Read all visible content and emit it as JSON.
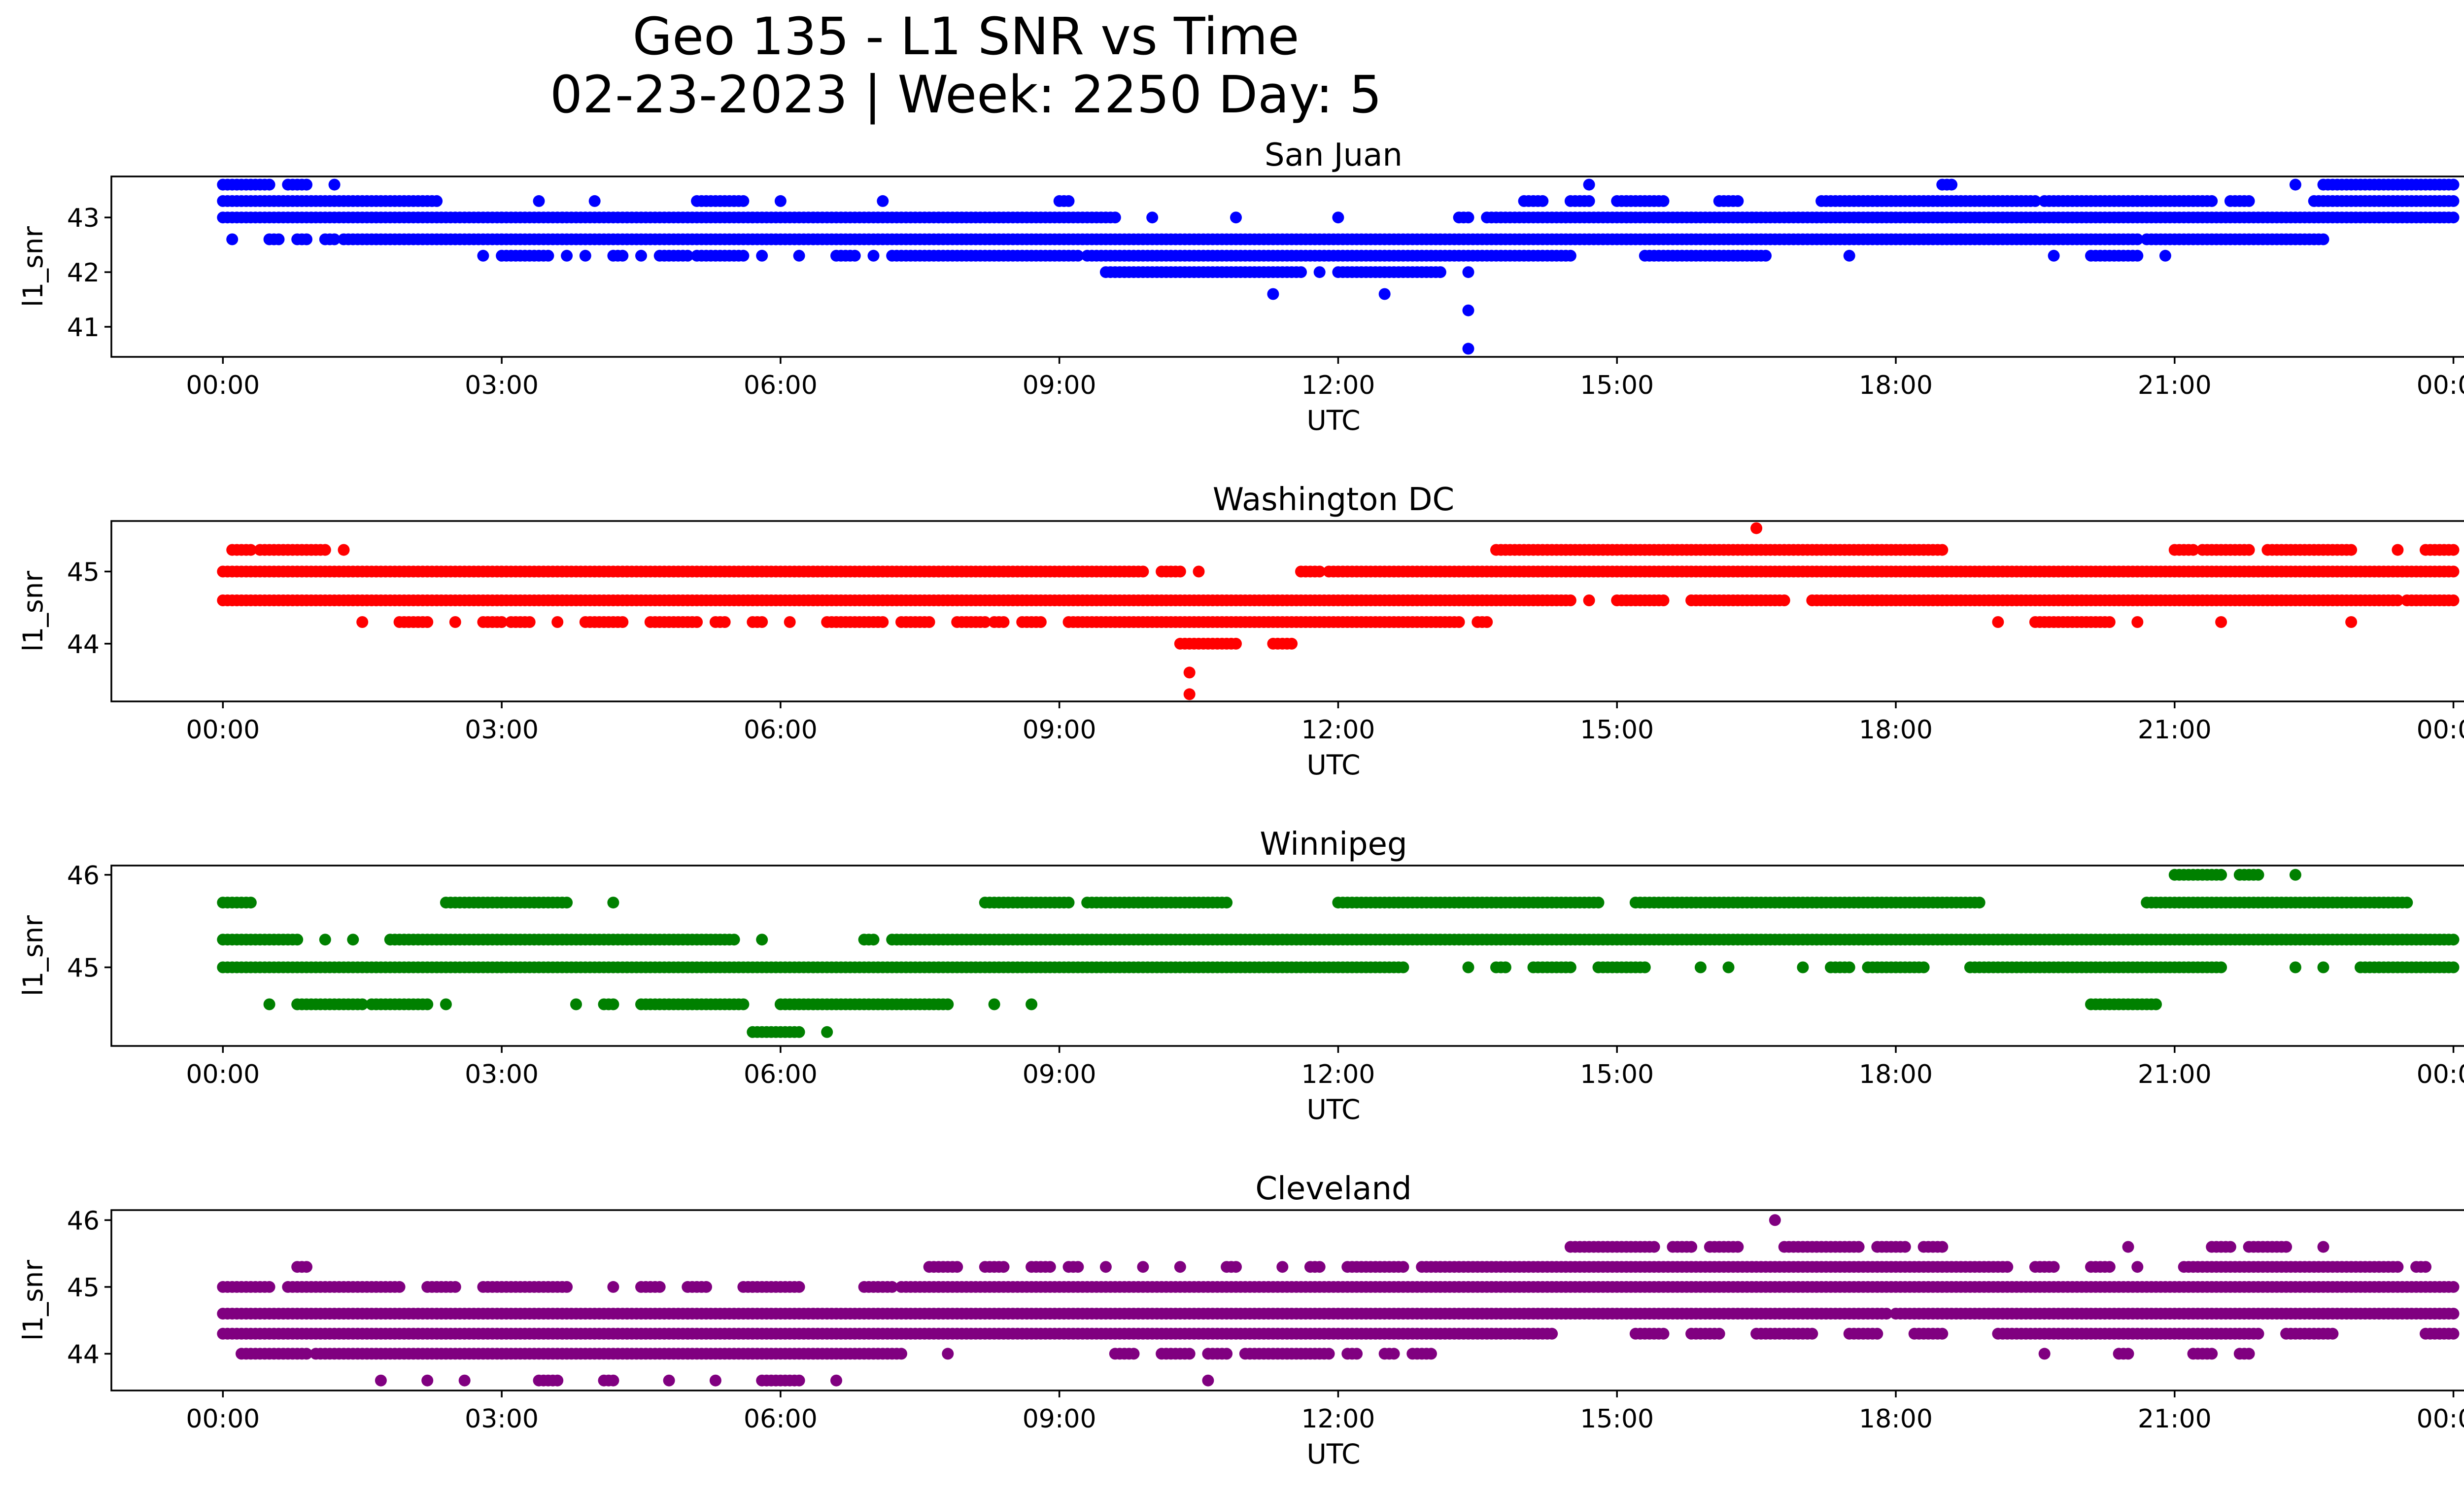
{
  "figure": {
    "title_line1": "Geo 135 - L1 SNR vs Time",
    "title_line2": "02-23-2023 | Week: 2250 Day: 5"
  },
  "chart_data": [
    {
      "type": "scatter",
      "title": "San Juan",
      "xlabel": "UTC",
      "ylabel": "l1_snr",
      "color": "#0000ff",
      "xlim": [
        -1.2,
        25.1
      ],
      "ylim": [
        40.45,
        43.75
      ],
      "x_ticks": [
        "00:00",
        "03:00",
        "06:00",
        "09:00",
        "12:00",
        "15:00",
        "18:00",
        "21:00",
        "00:00"
      ],
      "y_ticks": [
        41,
        42,
        43
      ],
      "bands": [
        {
          "y": 43.6,
          "segments": [
            [
              0.0,
              0.5
            ],
            [
              0.7,
              0.9
            ],
            [
              1.2,
              1.2
            ],
            [
              22.3,
              22.3
            ],
            [
              22.6,
              24.0
            ],
            [
              14.7,
              14.7
            ],
            [
              18.5,
              18.6
            ]
          ]
        },
        {
          "y": 43.3,
          "segments": [
            [
              0.0,
              2.3
            ],
            [
              3.4,
              3.4
            ],
            [
              4.0,
              4.0
            ],
            [
              5.1,
              5.6
            ],
            [
              6.0,
              6.0
            ],
            [
              7.1,
              7.1
            ],
            [
              9.0,
              9.1
            ],
            [
              14.0,
              14.2
            ],
            [
              14.5,
              14.7
            ],
            [
              15.0,
              15.5
            ],
            [
              16.1,
              16.3
            ],
            [
              17.2,
              19.5
            ],
            [
              19.6,
              21.4
            ],
            [
              21.6,
              21.8
            ],
            [
              22.5,
              24.0
            ]
          ]
        },
        {
          "y": 43.0,
          "segments": [
            [
              0.0,
              9.6
            ],
            [
              10.0,
              10.0
            ],
            [
              10.9,
              10.9
            ],
            [
              12.0,
              12.0
            ],
            [
              13.3,
              13.4
            ],
            [
              13.6,
              24.0
            ]
          ]
        },
        {
          "y": 42.6,
          "segments": [
            [
              0.1,
              0.1
            ],
            [
              0.5,
              0.6
            ],
            [
              0.8,
              0.9
            ],
            [
              1.1,
              1.2
            ],
            [
              1.3,
              20.6
            ],
            [
              20.7,
              22.6
            ]
          ]
        },
        {
          "y": 42.3,
          "segments": [
            [
              2.8,
              2.8
            ],
            [
              3.0,
              3.5
            ],
            [
              3.7,
              3.7
            ],
            [
              3.9,
              3.9
            ],
            [
              4.2,
              4.3
            ],
            [
              4.5,
              4.5
            ],
            [
              4.7,
              5.0
            ],
            [
              5.1,
              5.6
            ],
            [
              6.2,
              6.2
            ],
            [
              5.8,
              5.8
            ],
            [
              6.6,
              6.8
            ],
            [
              7.0,
              7.0
            ],
            [
              7.2,
              9.2
            ],
            [
              9.3,
              14.5
            ],
            [
              15.3,
              16.6
            ],
            [
              17.5,
              17.5
            ],
            [
              19.7,
              19.7
            ],
            [
              20.1,
              20.6
            ],
            [
              20.9,
              20.9
            ]
          ]
        },
        {
          "y": 42.0,
          "segments": [
            [
              9.5,
              11.6
            ],
            [
              11.8,
              11.8
            ],
            [
              12.0,
              13.1
            ],
            [
              13.4,
              13.4
            ]
          ]
        },
        {
          "y": 41.6,
          "segments": [
            [
              11.3,
              11.3
            ],
            [
              12.5,
              12.5
            ]
          ]
        },
        {
          "y": 41.3,
          "segments": [
            [
              13.4,
              13.4
            ]
          ]
        },
        {
          "y": 40.6,
          "segments": [
            [
              13.4,
              13.4
            ]
          ]
        }
      ]
    },
    {
      "type": "scatter",
      "title": "Washington DC",
      "xlabel": "UTC",
      "ylabel": "l1_snr",
      "color": "#ff0000",
      "xlim": [
        -1.2,
        25.1
      ],
      "ylim": [
        43.2,
        45.7
      ],
      "x_ticks": [
        "00:00",
        "03:00",
        "06:00",
        "09:00",
        "12:00",
        "15:00",
        "18:00",
        "21:00",
        "00:00"
      ],
      "y_ticks": [
        44,
        45
      ],
      "bands": [
        {
          "y": 45.6,
          "segments": [
            [
              16.5,
              16.5
            ]
          ]
        },
        {
          "y": 45.3,
          "segments": [
            [
              0.1,
              0.3
            ],
            [
              0.4,
              1.1
            ],
            [
              1.3,
              1.3
            ],
            [
              13.7,
              18.5
            ],
            [
              21.0,
              21.2
            ],
            [
              21.3,
              21.8
            ],
            [
              22.0,
              22.9
            ],
            [
              23.4,
              23.4
            ],
            [
              23.7,
              24.0
            ]
          ]
        },
        {
          "y": 45.0,
          "segments": [
            [
              0.0,
              9.9
            ],
            [
              10.1,
              10.3
            ],
            [
              10.5,
              10.5
            ],
            [
              11.6,
              11.8
            ],
            [
              11.9,
              24.0
            ]
          ]
        },
        {
          "y": 44.6,
          "segments": [
            [
              0.0,
              14.5
            ],
            [
              14.7,
              14.7
            ],
            [
              15.0,
              15.5
            ],
            [
              15.8,
              16.8
            ],
            [
              17.1,
              23.4
            ],
            [
              23.5,
              24.0
            ]
          ]
        },
        {
          "y": 44.3,
          "segments": [
            [
              1.5,
              1.5
            ],
            [
              1.9,
              2.2
            ],
            [
              2.5,
              2.5
            ],
            [
              2.8,
              3.0
            ],
            [
              3.1,
              3.3
            ],
            [
              3.6,
              3.6
            ],
            [
              3.9,
              4.3
            ],
            [
              4.6,
              5.1
            ],
            [
              5.3,
              5.4
            ],
            [
              5.7,
              5.8
            ],
            [
              6.1,
              6.1
            ],
            [
              6.5,
              7.1
            ],
            [
              7.3,
              7.6
            ],
            [
              7.9,
              8.2
            ],
            [
              8.3,
              8.4
            ],
            [
              8.6,
              8.8
            ],
            [
              9.1,
              13.3
            ],
            [
              13.5,
              13.6
            ],
            [
              19.1,
              19.1
            ],
            [
              19.5,
              20.3
            ],
            [
              20.6,
              20.6
            ],
            [
              21.5,
              21.5
            ],
            [
              22.9,
              22.9
            ]
          ]
        },
        {
          "y": 44.0,
          "segments": [
            [
              10.3,
              10.9
            ],
            [
              11.3,
              11.5
            ]
          ]
        },
        {
          "y": 43.6,
          "segments": [
            [
              10.4,
              10.4
            ]
          ]
        },
        {
          "y": 43.3,
          "segments": [
            [
              10.4,
              10.4
            ]
          ]
        }
      ]
    },
    {
      "type": "scatter",
      "title": "Winnipeg",
      "xlabel": "UTC",
      "ylabel": "l1_snr",
      "color": "#008000",
      "xlim": [
        -1.2,
        25.1
      ],
      "ylim": [
        44.15,
        46.1
      ],
      "x_ticks": [
        "00:00",
        "03:00",
        "06:00",
        "09:00",
        "12:00",
        "15:00",
        "18:00",
        "21:00",
        "00:00"
      ],
      "y_ticks": [
        45,
        46
      ],
      "bands": [
        {
          "y": 46.0,
          "segments": [
            [
              21.0,
              21.5
            ],
            [
              21.7,
              21.9
            ],
            [
              22.3,
              22.3
            ]
          ]
        },
        {
          "y": 45.7,
          "segments": [
            [
              0.0,
              0.3
            ],
            [
              2.4,
              3.7
            ],
            [
              4.2,
              4.2
            ],
            [
              8.2,
              9.1
            ],
            [
              9.3,
              10.8
            ],
            [
              12.0,
              14.8
            ],
            [
              15.2,
              18.9
            ],
            [
              20.7,
              23.5
            ]
          ]
        },
        {
          "y": 45.3,
          "segments": [
            [
              0.0,
              0.8
            ],
            [
              1.1,
              1.1
            ],
            [
              1.4,
              1.4
            ],
            [
              1.8,
              5.5
            ],
            [
              5.8,
              5.8
            ],
            [
              6.9,
              7.0
            ],
            [
              7.2,
              24.0
            ]
          ]
        },
        {
          "y": 45.0,
          "segments": [
            [
              0.0,
              12.7
            ],
            [
              13.4,
              13.4
            ],
            [
              13.7,
              13.8
            ],
            [
              14.1,
              14.5
            ],
            [
              14.8,
              15.3
            ],
            [
              15.9,
              15.9
            ],
            [
              16.2,
              16.2
            ],
            [
              17.0,
              17.0
            ],
            [
              17.3,
              17.5
            ],
            [
              17.7,
              18.3
            ],
            [
              18.8,
              21.5
            ],
            [
              22.3,
              22.3
            ],
            [
              22.6,
              22.6
            ],
            [
              23.0,
              24.0
            ]
          ]
        },
        {
          "y": 44.6,
          "segments": [
            [
              0.5,
              0.5
            ],
            [
              0.8,
              1.5
            ],
            [
              1.6,
              2.2
            ],
            [
              2.4,
              2.4
            ],
            [
              3.8,
              3.8
            ],
            [
              4.1,
              4.2
            ],
            [
              4.5,
              5.6
            ],
            [
              6.0,
              7.8
            ],
            [
              8.3,
              8.3
            ],
            [
              8.7,
              8.7
            ],
            [
              20.1,
              20.8
            ]
          ]
        },
        {
          "y": 44.3,
          "segments": [
            [
              5.7,
              6.2
            ],
            [
              6.5,
              6.5
            ]
          ]
        }
      ]
    },
    {
      "type": "scatter",
      "title": "Cleveland",
      "xlabel": "UTC",
      "ylabel": "l1_snr",
      "color": "#800080",
      "xlim": [
        -1.2,
        25.1
      ],
      "ylim": [
        43.45,
        46.15
      ],
      "x_ticks": [
        "00:00",
        "03:00",
        "06:00",
        "09:00",
        "12:00",
        "15:00",
        "18:00",
        "21:00",
        "00:00"
      ],
      "y_ticks": [
        44,
        45,
        46
      ],
      "bands": [
        {
          "y": 46.0,
          "segments": [
            [
              16.7,
              16.7
            ]
          ]
        },
        {
          "y": 45.6,
          "segments": [
            [
              14.5,
              15.4
            ],
            [
              15.6,
              15.8
            ],
            [
              16.0,
              16.3
            ],
            [
              16.8,
              17.6
            ],
            [
              17.8,
              18.1
            ],
            [
              18.3,
              18.5
            ],
            [
              20.5,
              20.5
            ],
            [
              21.4,
              21.6
            ],
            [
              21.8,
              22.2
            ],
            [
              22.6,
              22.6
            ]
          ]
        },
        {
          "y": 45.3,
          "segments": [
            [
              0.8,
              0.9
            ],
            [
              7.6,
              7.9
            ],
            [
              8.2,
              8.4
            ],
            [
              8.7,
              8.9
            ],
            [
              9.1,
              9.2
            ],
            [
              9.5,
              9.5
            ],
            [
              9.9,
              9.9
            ],
            [
              10.3,
              10.3
            ],
            [
              10.8,
              10.9
            ],
            [
              11.4,
              11.4
            ],
            [
              11.7,
              11.8
            ],
            [
              12.1,
              12.7
            ],
            [
              12.9,
              19.2
            ],
            [
              19.5,
              19.7
            ],
            [
              20.1,
              20.3
            ],
            [
              20.6,
              20.6
            ],
            [
              21.1,
              23.4
            ],
            [
              23.6,
              23.7
            ]
          ]
        },
        {
          "y": 45.0,
          "segments": [
            [
              0.0,
              0.5
            ],
            [
              0.7,
              1.9
            ],
            [
              2.2,
              2.5
            ],
            [
              2.8,
              3.7
            ],
            [
              4.2,
              4.2
            ],
            [
              4.5,
              4.7
            ],
            [
              5.0,
              5.2
            ],
            [
              5.6,
              6.2
            ],
            [
              6.9,
              7.2
            ],
            [
              7.3,
              24.0
            ]
          ]
        },
        {
          "y": 44.6,
          "segments": [
            [
              0.0,
              17.9
            ],
            [
              18.0,
              24.0
            ]
          ]
        },
        {
          "y": 44.3,
          "segments": [
            [
              0.0,
              14.3
            ],
            [
              15.2,
              15.5
            ],
            [
              15.8,
              16.1
            ],
            [
              16.5,
              17.1
            ],
            [
              17.5,
              17.8
            ],
            [
              18.2,
              18.5
            ],
            [
              19.1,
              21.9
            ],
            [
              22.2,
              22.7
            ],
            [
              23.7,
              24.0
            ]
          ]
        },
        {
          "y": 44.0,
          "segments": [
            [
              0.2,
              0.9
            ],
            [
              1.0,
              7.3
            ],
            [
              7.8,
              7.8
            ],
            [
              9.6,
              9.8
            ],
            [
              10.1,
              10.4
            ],
            [
              10.6,
              10.8
            ],
            [
              11.0,
              11.9
            ],
            [
              12.1,
              12.2
            ],
            [
              12.5,
              12.6
            ],
            [
              12.8,
              13.0
            ],
            [
              19.6,
              19.6
            ],
            [
              20.4,
              20.5
            ],
            [
              21.2,
              21.4
            ],
            [
              21.7,
              21.8
            ]
          ]
        },
        {
          "y": 43.6,
          "segments": [
            [
              1.7,
              1.7
            ],
            [
              2.2,
              2.2
            ],
            [
              2.6,
              2.6
            ],
            [
              3.4,
              3.6
            ],
            [
              4.1,
              4.2
            ],
            [
              4.8,
              4.8
            ],
            [
              5.3,
              5.3
            ],
            [
              5.8,
              6.2
            ],
            [
              6.6,
              6.6
            ],
            [
              10.6,
              10.6
            ]
          ]
        }
      ]
    }
  ]
}
